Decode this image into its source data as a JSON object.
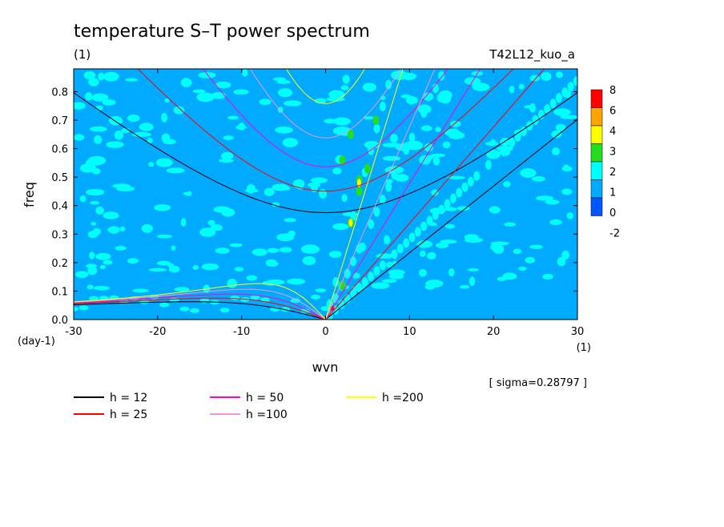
{
  "chart_data": {
    "type": "heatmap",
    "title": "temperature S–T power spectrum",
    "title_units": "(1)",
    "run_label": "T42L12_kuo_a",
    "xlabel": "wvn",
    "x_units": "(1)",
    "ylabel": "freq",
    "y_units": "(day-1)",
    "xlim": [
      -30,
      30
    ],
    "ylim": [
      0.0,
      0.88
    ],
    "x_ticks": [
      "-30",
      "-20",
      "-10",
      "0",
      "10",
      "20",
      "30"
    ],
    "y_ticks": [
      "0.0",
      "0.1",
      "0.2",
      "0.3",
      "0.4",
      "0.5",
      "0.6",
      "0.7",
      "0.8"
    ],
    "sigma_text": "[ sigma=0.28797 ]",
    "colorbar": {
      "levels": [
        "8",
        "6",
        "4",
        "3",
        "2",
        "1",
        "0",
        "-2"
      ],
      "colors": [
        "#ff0000",
        "#ffa500",
        "#ffff00",
        "#22dd22",
        "#00ffff",
        "#00aaff",
        "#0055ff"
      ]
    },
    "background_color": "#00aaff",
    "series": [
      {
        "name": "h = 12",
        "h": 12,
        "color": "#000000"
      },
      {
        "name": "h = 25",
        "h": 25,
        "color": "#ff0000"
      },
      {
        "name": "h = 50",
        "h": 50,
        "color": "#ff00cc"
      },
      {
        "name": "h =100",
        "h": 100,
        "color": "#ee99dd"
      },
      {
        "name": "h =200",
        "h": 200,
        "color": "#ffff00"
      }
    ],
    "legend_position": "bottom"
  }
}
